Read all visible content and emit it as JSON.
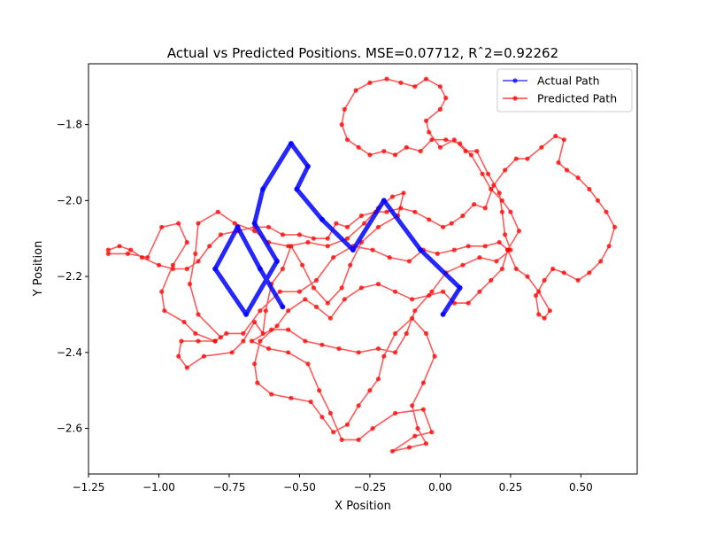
{
  "chart_data": {
    "type": "line",
    "title": "Actual vs Predicted Positions. MSE=0.07712, Rˆ2=0.92262",
    "xlabel": "X Position",
    "ylabel": "Y Position",
    "xlim": [
      -1.25,
      0.7
    ],
    "ylim": [
      -2.72,
      -1.64
    ],
    "x_ticks": [
      -1.25,
      -1.0,
      -0.75,
      -0.5,
      -0.25,
      0.0,
      0.25,
      0.5
    ],
    "x_tick_labels": [
      "−1.25",
      "−1.00",
      "−0.75",
      "−0.50",
      "−0.25",
      "0.00",
      "0.25",
      "0.50"
    ],
    "y_ticks": [
      -1.8,
      -2.0,
      -2.2,
      -2.4,
      -2.6
    ],
    "y_tick_labels": [
      "−1.8",
      "−2.0",
      "−2.2",
      "−2.4",
      "−2.6"
    ],
    "grid": false,
    "legend_position": "upper right",
    "series": [
      {
        "name": "Actual Path",
        "color": "#0000ff",
        "marker": "point",
        "points": [
          [
            -0.56,
            -2.28
          ],
          [
            -0.64,
            -2.18
          ],
          [
            -0.72,
            -2.07
          ],
          [
            -0.8,
            -2.18
          ],
          [
            -0.69,
            -2.3
          ],
          [
            -0.58,
            -2.16
          ],
          [
            -0.66,
            -2.06
          ],
          [
            -0.63,
            -1.97
          ],
          [
            -0.53,
            -1.85
          ],
          [
            -0.47,
            -1.91
          ],
          [
            -0.51,
            -1.97
          ],
          [
            -0.42,
            -2.05
          ],
          [
            -0.31,
            -2.13
          ],
          [
            -0.2,
            -2.0
          ],
          [
            -0.07,
            -2.13
          ],
          [
            0.07,
            -2.23
          ],
          [
            0.01,
            -2.3
          ]
        ]
      },
      {
        "name": "Predicted Path",
        "color": "#ff0000",
        "marker": "point",
        "points": [
          [
            -1.18,
            -2.14
          ],
          [
            -1.11,
            -2.14
          ],
          [
            -1.04,
            -2.15
          ],
          [
            -0.99,
            -2.07
          ],
          [
            -0.93,
            -2.06
          ],
          [
            -0.9,
            -2.11
          ],
          [
            -0.95,
            -2.17
          ],
          [
            -0.99,
            -2.24
          ],
          [
            -0.98,
            -2.29
          ],
          [
            -0.91,
            -2.32
          ],
          [
            -0.87,
            -2.35
          ],
          [
            -0.8,
            -2.37
          ],
          [
            -0.78,
            -2.36
          ],
          [
            -0.86,
            -2.3
          ],
          [
            -0.89,
            -2.22
          ],
          [
            -0.87,
            -2.14
          ],
          [
            -0.86,
            -2.06
          ],
          [
            -0.79,
            -2.03
          ],
          [
            -0.73,
            -2.06
          ],
          [
            -0.66,
            -2.08
          ],
          [
            -0.61,
            -2.11
          ],
          [
            -0.54,
            -2.12
          ],
          [
            -0.47,
            -2.11
          ],
          [
            -0.4,
            -2.12
          ],
          [
            -0.33,
            -2.1
          ],
          [
            -0.27,
            -2.06
          ],
          [
            -0.22,
            -2.02
          ],
          [
            -0.17,
            -1.99
          ],
          [
            -0.13,
            -1.98
          ],
          [
            -0.15,
            -2.04
          ],
          [
            -0.22,
            -2.07
          ],
          [
            -0.28,
            -2.11
          ],
          [
            -0.32,
            -2.17
          ],
          [
            -0.35,
            -2.23
          ],
          [
            -0.4,
            -2.27
          ],
          [
            -0.45,
            -2.23
          ],
          [
            -0.49,
            -2.17
          ],
          [
            -0.53,
            -2.12
          ],
          [
            -0.56,
            -2.18
          ],
          [
            -0.6,
            -2.22
          ],
          [
            -0.62,
            -2.29
          ],
          [
            -0.63,
            -2.35
          ],
          [
            -0.66,
            -2.32
          ],
          [
            -0.7,
            -2.37
          ],
          [
            -0.74,
            -2.4
          ],
          [
            -0.84,
            -2.41
          ],
          [
            -0.9,
            -2.44
          ],
          [
            -0.93,
            -2.41
          ],
          [
            -0.92,
            -2.37
          ],
          [
            -0.86,
            -2.37
          ],
          [
            -0.8,
            -2.37
          ],
          [
            -0.76,
            -2.35
          ],
          [
            -0.7,
            -2.35
          ],
          [
            -0.64,
            -2.29
          ],
          [
            -0.57,
            -2.24
          ],
          [
            -0.5,
            -2.24
          ],
          [
            -0.44,
            -2.21
          ],
          [
            -0.38,
            -2.15
          ],
          [
            -0.31,
            -2.12
          ],
          [
            -0.24,
            -2.13
          ],
          [
            -0.18,
            -2.15
          ],
          [
            -0.11,
            -2.16
          ],
          [
            -0.06,
            -2.13
          ],
          [
            -0.01,
            -2.14
          ],
          [
            0.05,
            -2.13
          ],
          [
            0.1,
            -2.12
          ],
          [
            0.16,
            -2.12
          ],
          [
            0.21,
            -2.11
          ],
          [
            0.24,
            -2.13
          ],
          [
            0.22,
            -2.18
          ],
          [
            0.18,
            -2.21
          ],
          [
            0.14,
            -2.24
          ],
          [
            0.1,
            -2.27
          ],
          [
            0.05,
            -2.27
          ],
          [
            0.01,
            -2.24
          ],
          [
            -0.04,
            -2.25
          ],
          [
            -0.1,
            -2.26
          ],
          [
            -0.16,
            -2.24
          ],
          [
            -0.22,
            -2.22
          ],
          [
            -0.28,
            -2.23
          ],
          [
            -0.34,
            -2.26
          ],
          [
            -0.39,
            -2.31
          ],
          [
            -0.44,
            -2.28
          ],
          [
            -0.48,
            -2.26
          ],
          [
            -0.54,
            -2.29
          ],
          [
            -0.58,
            -2.33
          ],
          [
            -0.64,
            -2.37
          ],
          [
            -0.66,
            -2.43
          ],
          [
            -0.65,
            -2.48
          ],
          [
            -0.6,
            -2.51
          ],
          [
            -0.53,
            -2.52
          ],
          [
            -0.46,
            -2.53
          ],
          [
            -0.42,
            -2.57
          ],
          [
            -0.38,
            -2.61
          ],
          [
            -0.33,
            -2.59
          ],
          [
            -0.29,
            -2.54
          ],
          [
            -0.25,
            -2.5
          ],
          [
            -0.22,
            -2.47
          ],
          [
            -0.2,
            -2.41
          ],
          [
            -0.16,
            -2.35
          ],
          [
            -0.1,
            -2.31
          ],
          [
            -0.05,
            -2.35
          ],
          [
            -0.02,
            -2.41
          ],
          [
            -0.06,
            -2.48
          ],
          [
            -0.1,
            -2.54
          ],
          [
            -0.08,
            -2.6
          ],
          [
            -0.05,
            -2.64
          ],
          [
            -0.11,
            -2.65
          ],
          [
            -0.17,
            -2.66
          ],
          [
            -0.09,
            -2.62
          ],
          [
            -0.03,
            -2.61
          ],
          [
            -0.06,
            -2.55
          ],
          [
            -0.16,
            -2.56
          ],
          [
            -0.24,
            -2.6
          ],
          [
            -0.29,
            -2.63
          ],
          [
            -0.35,
            -2.63
          ],
          [
            -0.39,
            -2.56
          ],
          [
            -0.43,
            -2.5
          ],
          [
            -0.47,
            -2.43
          ],
          [
            -0.54,
            -2.4
          ],
          [
            -0.61,
            -2.39
          ],
          [
            -0.67,
            -2.37
          ],
          [
            -0.6,
            -2.34
          ],
          [
            -0.54,
            -2.34
          ],
          [
            -0.48,
            -2.37
          ],
          [
            -0.42,
            -2.38
          ],
          [
            -0.36,
            -2.39
          ],
          [
            -0.29,
            -2.4
          ],
          [
            -0.22,
            -2.39
          ],
          [
            -0.16,
            -2.4
          ],
          [
            -0.12,
            -2.35
          ],
          [
            -0.09,
            -2.29
          ],
          [
            -0.03,
            -2.24
          ],
          [
            0.02,
            -2.19
          ],
          [
            0.08,
            -2.17
          ],
          [
            0.14,
            -2.15
          ],
          [
            0.2,
            -2.16
          ],
          [
            0.25,
            -2.13
          ],
          [
            0.23,
            -2.09
          ],
          [
            0.22,
            -2.03
          ],
          [
            0.21,
            -1.98
          ],
          [
            0.17,
            -1.93
          ],
          [
            0.13,
            -1.87
          ],
          [
            0.09,
            -1.87
          ],
          [
            0.05,
            -1.84
          ],
          [
            0.0,
            -1.86
          ],
          [
            -0.04,
            -1.82
          ],
          [
            -0.05,
            -1.79
          ],
          [
            0.0,
            -1.76
          ],
          [
            0.02,
            -1.73
          ],
          [
            0.0,
            -1.7
          ],
          [
            -0.05,
            -1.68
          ],
          [
            -0.09,
            -1.7
          ],
          [
            -0.14,
            -1.69
          ],
          [
            -0.19,
            -1.68
          ],
          [
            -0.25,
            -1.69
          ],
          [
            -0.3,
            -1.71
          ],
          [
            -0.34,
            -1.76
          ],
          [
            -0.35,
            -1.8
          ],
          [
            -0.33,
            -1.84
          ],
          [
            -0.29,
            -1.86
          ],
          [
            -0.25,
            -1.88
          ],
          [
            -0.2,
            -1.87
          ],
          [
            -0.16,
            -1.88
          ],
          [
            -0.12,
            -1.86
          ],
          [
            -0.07,
            -1.87
          ],
          [
            -0.03,
            -1.84
          ],
          [
            0.02,
            -1.84
          ],
          [
            0.07,
            -1.85
          ],
          [
            0.11,
            -1.88
          ],
          [
            0.15,
            -1.93
          ],
          [
            0.18,
            -1.97
          ],
          [
            0.22,
            -2.0
          ],
          [
            0.25,
            -2.03
          ],
          [
            0.28,
            -2.08
          ],
          [
            0.24,
            -2.13
          ],
          [
            0.27,
            -2.18
          ],
          [
            0.31,
            -2.2
          ],
          [
            0.35,
            -2.24
          ],
          [
            0.39,
            -2.29
          ],
          [
            0.37,
            -2.31
          ],
          [
            0.35,
            -2.3
          ],
          [
            0.34,
            -2.25
          ],
          [
            0.37,
            -2.21
          ],
          [
            0.4,
            -2.18
          ],
          [
            0.44,
            -2.19
          ],
          [
            0.49,
            -2.21
          ],
          [
            0.53,
            -2.19
          ],
          [
            0.57,
            -2.16
          ],
          [
            0.6,
            -2.12
          ],
          [
            0.62,
            -2.07
          ],
          [
            0.59,
            -2.03
          ],
          [
            0.56,
            -2.0
          ],
          [
            0.53,
            -1.97
          ],
          [
            0.49,
            -1.94
          ],
          [
            0.45,
            -1.92
          ],
          [
            0.42,
            -1.9
          ],
          [
            0.44,
            -1.84
          ],
          [
            0.41,
            -1.83
          ],
          [
            0.36,
            -1.86
          ],
          [
            0.31,
            -1.89
          ],
          [
            0.27,
            -1.89
          ],
          [
            0.23,
            -1.92
          ],
          [
            0.19,
            -1.96
          ],
          [
            0.16,
            -2.02
          ],
          [
            0.12,
            -2.01
          ],
          [
            0.08,
            -2.04
          ],
          [
            0.04,
            -2.06
          ],
          [
            0.01,
            -2.07
          ],
          [
            -0.04,
            -2.05
          ],
          [
            -0.09,
            -2.03
          ],
          [
            -0.14,
            -2.02
          ],
          [
            -0.19,
            -2.03
          ],
          [
            -0.23,
            -2.03
          ],
          [
            -0.28,
            -2.04
          ],
          [
            -0.33,
            -2.07
          ],
          [
            -0.37,
            -2.06
          ],
          [
            -0.4,
            -2.1
          ],
          [
            -0.45,
            -2.1
          ],
          [
            -0.5,
            -2.09
          ],
          [
            -0.56,
            -2.09
          ],
          [
            -0.61,
            -2.07
          ],
          [
            -0.66,
            -2.07
          ],
          [
            -0.72,
            -2.08
          ],
          [
            -0.78,
            -2.09
          ],
          [
            -0.82,
            -2.12
          ],
          [
            -0.86,
            -2.16
          ],
          [
            -0.9,
            -2.18
          ],
          [
            -0.95,
            -2.18
          ],
          [
            -1.0,
            -2.17
          ],
          [
            -1.06,
            -2.15
          ],
          [
            -1.1,
            -2.13
          ],
          [
            -1.14,
            -2.12
          ],
          [
            -1.18,
            -2.13
          ]
        ]
      }
    ]
  }
}
